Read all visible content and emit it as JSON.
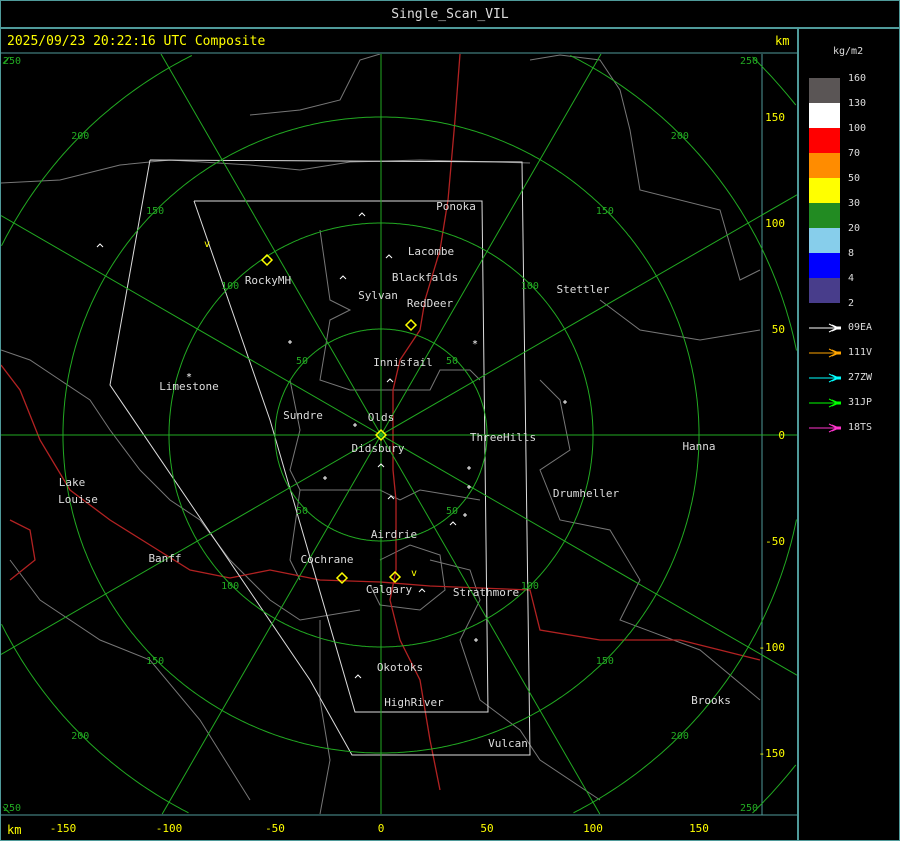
{
  "window": {
    "title": "Single_Scan_VIL"
  },
  "header": {
    "timestamp": "2025/09/23 20:22:16 UTC Composite",
    "km_label": "km"
  },
  "legend": {
    "unit": "kg/m2",
    "scale": [
      {
        "label": "160",
        "color": "#5a5555"
      },
      {
        "label": "130",
        "color": "#ffffff"
      },
      {
        "label": "100",
        "color": "#ff0000"
      },
      {
        "label": "70",
        "color": "#ff8c00"
      },
      {
        "label": "50",
        "color": "#ffff00"
      },
      {
        "label": "30",
        "color": "#228b22"
      },
      {
        "label": "20",
        "color": "#87ceeb"
      },
      {
        "label": "8",
        "color": "#0000ff"
      },
      {
        "label": "4",
        "color": "#483d8b"
      },
      {
        "label": "2",
        "color": ""
      }
    ],
    "radars": [
      {
        "label": "09EA",
        "color": "#ffffff"
      },
      {
        "label": "111V",
        "color": "#ffa500"
      },
      {
        "label": "27ZW",
        "color": "#00ffff"
      },
      {
        "label": "31JP",
        "color": "#00ff00"
      },
      {
        "label": "18TS",
        "color": "#ff33cc"
      }
    ]
  },
  "axes": {
    "x_ticks": [
      "-150",
      "-100",
      "-50",
      "0",
      "50",
      "100",
      "150"
    ],
    "y_ticks": [
      "150",
      "100",
      "50",
      "0",
      "-50",
      "-100",
      "-150"
    ],
    "unit": "km",
    "range_rings_km": [
      "50",
      "100",
      "150",
      "200",
      "250"
    ],
    "grid_color": "#22aa22"
  },
  "places": [
    "Ponoka",
    "Lacombe",
    "Blackfalds",
    "Sylvan",
    "RedDeer",
    "RockyMH",
    "Stettler",
    "Innisfail",
    "Limestone",
    "Sundre",
    "Olds",
    "Didsbury",
    "ThreeHills",
    "Hanna",
    "Drumheller",
    "Lake",
    "Louise",
    "Banff",
    "Cochrane",
    "Airdrie",
    "Calgary",
    "Strathmore",
    "Okotoks",
    "HighRiver",
    "Brooks",
    "Vulcan"
  ]
}
